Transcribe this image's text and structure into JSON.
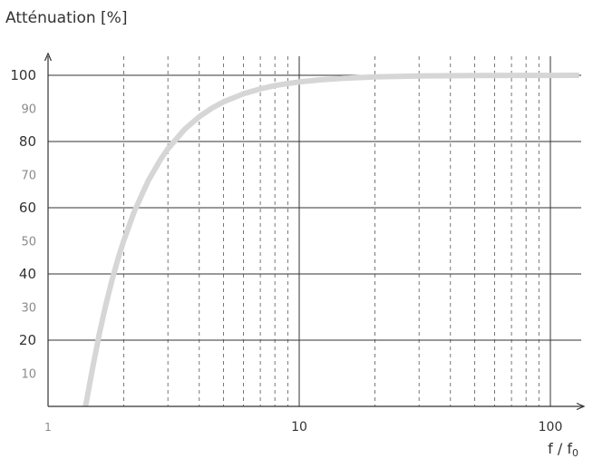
{
  "chart_data": {
    "type": "line",
    "title": "Atténuation [%]",
    "xlabel": "f / f",
    "xlabel_subscript": "0",
    "x_scale": "log",
    "xlim": [
      1,
      130
    ],
    "ylim": [
      0,
      103
    ],
    "x_major_ticks": [
      {
        "value": 1,
        "label": "1"
      },
      {
        "value": 10,
        "label": "10"
      },
      {
        "value": 100,
        "label": "100"
      }
    ],
    "x_minor_gridlines": [
      2,
      3,
      4,
      5,
      6,
      7,
      8,
      9,
      20,
      30,
      40,
      50,
      60,
      70,
      80,
      90
    ],
    "y_ticks": [
      {
        "value": 10,
        "label": "10",
        "major": false
      },
      {
        "value": 20,
        "label": "20",
        "major": true
      },
      {
        "value": 30,
        "label": "30",
        "major": false
      },
      {
        "value": 40,
        "label": "40",
        "major": true
      },
      {
        "value": 50,
        "label": "50",
        "major": false
      },
      {
        "value": 60,
        "label": "60",
        "major": true
      },
      {
        "value": 70,
        "label": "70",
        "major": false
      },
      {
        "value": 80,
        "label": "80",
        "major": true
      },
      {
        "value": 90,
        "label": "90",
        "major": false
      },
      {
        "value": 100,
        "label": "100",
        "major": true
      }
    ],
    "grid": true,
    "series": [
      {
        "color": "#d6d6d6",
        "x": [
          1.41,
          1.5,
          1.6,
          1.7,
          1.8,
          1.9,
          2,
          2.2,
          2.5,
          2.8,
          3,
          3.5,
          4,
          4.5,
          5,
          6,
          7,
          8,
          9,
          10,
          12,
          15,
          20,
          30,
          50,
          70,
          100,
          130
        ],
        "y": [
          0,
          11.1,
          21.9,
          30.8,
          38.3,
          44.6,
          50,
          58.7,
          68,
          74.5,
          77.8,
          83.7,
          87.5,
          90.1,
          92,
          94.4,
          95.9,
          96.9,
          97.5,
          98,
          98.6,
          99.1,
          99.5,
          99.8,
          99.92,
          99.96,
          99.98,
          99.99
        ]
      }
    ]
  }
}
